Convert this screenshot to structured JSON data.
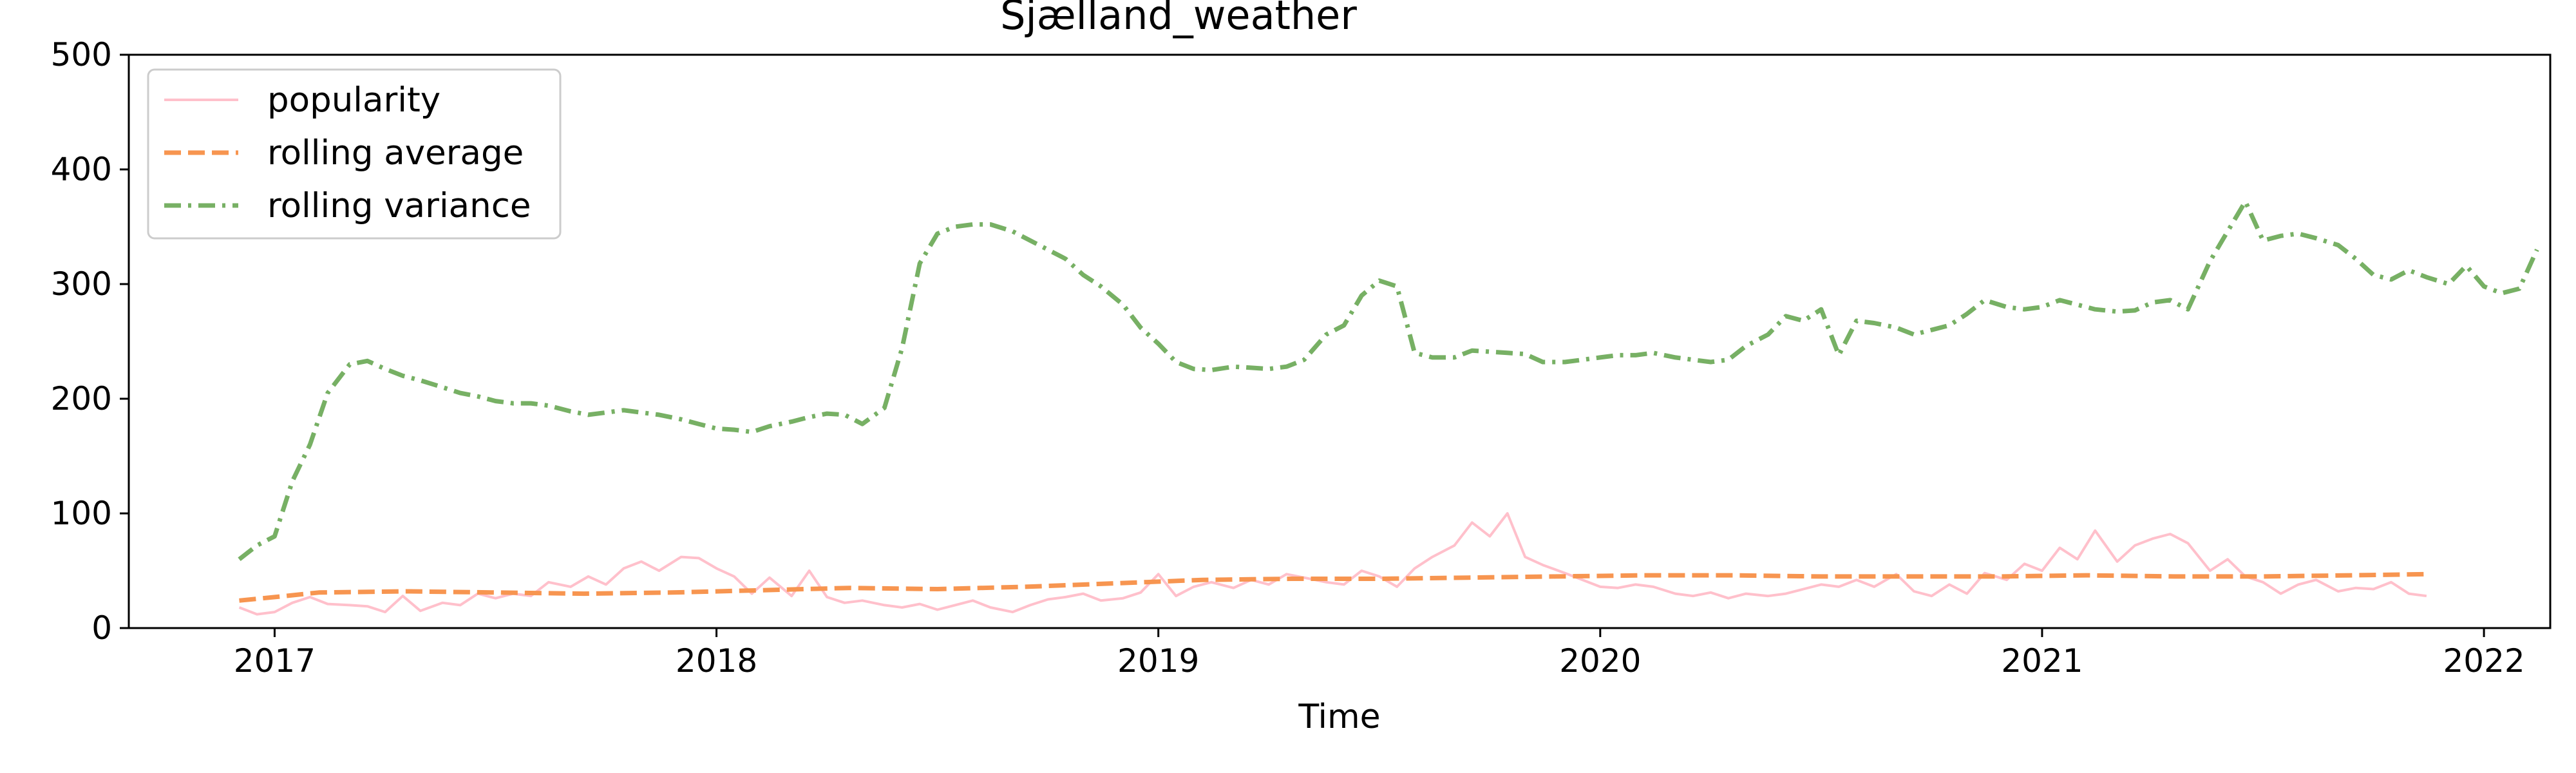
{
  "chart_data": {
    "type": "line",
    "title": "Sjælland_weather",
    "xlabel": "Time",
    "ylabel": "",
    "xlim": [
      2016.67,
      2022.15
    ],
    "ylim": [
      0,
      500
    ],
    "grid": false,
    "legend_position": "top-left",
    "x_ticks": [
      2017,
      2018,
      2019,
      2020,
      2021,
      2022
    ],
    "x_tick_labels": [
      "2017",
      "2018",
      "2019",
      "2020",
      "2021",
      "2022"
    ],
    "y_ticks": [
      0,
      100,
      200,
      300,
      400,
      500
    ],
    "y_tick_labels": [
      "0",
      "100",
      "200",
      "300",
      "400",
      "500"
    ],
    "series": [
      {
        "name": "popularity",
        "color": "#ffc0cb",
        "dash": "solid",
        "points": [
          [
            2016.92,
            18
          ],
          [
            2016.96,
            12
          ],
          [
            2017.0,
            14
          ],
          [
            2017.04,
            22
          ],
          [
            2017.08,
            27
          ],
          [
            2017.12,
            21
          ],
          [
            2017.17,
            20
          ],
          [
            2017.21,
            19
          ],
          [
            2017.25,
            14
          ],
          [
            2017.29,
            28
          ],
          [
            2017.33,
            15
          ],
          [
            2017.38,
            22
          ],
          [
            2017.42,
            20
          ],
          [
            2017.46,
            30
          ],
          [
            2017.5,
            26
          ],
          [
            2017.54,
            30
          ],
          [
            2017.58,
            28
          ],
          [
            2017.62,
            40
          ],
          [
            2017.67,
            36
          ],
          [
            2017.71,
            45
          ],
          [
            2017.75,
            38
          ],
          [
            2017.79,
            52
          ],
          [
            2017.83,
            58
          ],
          [
            2017.87,
            50
          ],
          [
            2017.92,
            62
          ],
          [
            2017.96,
            61
          ],
          [
            2018.0,
            52
          ],
          [
            2018.04,
            45
          ],
          [
            2018.08,
            30
          ],
          [
            2018.12,
            44
          ],
          [
            2018.17,
            28
          ],
          [
            2018.21,
            50
          ],
          [
            2018.25,
            27
          ],
          [
            2018.29,
            22
          ],
          [
            2018.33,
            24
          ],
          [
            2018.38,
            20
          ],
          [
            2018.42,
            18
          ],
          [
            2018.46,
            21
          ],
          [
            2018.5,
            16
          ],
          [
            2018.54,
            20
          ],
          [
            2018.58,
            24
          ],
          [
            2018.62,
            18
          ],
          [
            2018.67,
            14
          ],
          [
            2018.71,
            20
          ],
          [
            2018.75,
            25
          ],
          [
            2018.79,
            27
          ],
          [
            2018.83,
            30
          ],
          [
            2018.87,
            24
          ],
          [
            2018.92,
            26
          ],
          [
            2018.96,
            31
          ],
          [
            2019.0,
            47
          ],
          [
            2019.04,
            28
          ],
          [
            2019.08,
            36
          ],
          [
            2019.12,
            40
          ],
          [
            2019.17,
            35
          ],
          [
            2019.21,
            42
          ],
          [
            2019.25,
            38
          ],
          [
            2019.29,
            47
          ],
          [
            2019.33,
            44
          ],
          [
            2019.38,
            40
          ],
          [
            2019.42,
            38
          ],
          [
            2019.46,
            50
          ],
          [
            2019.5,
            45
          ],
          [
            2019.54,
            36
          ],
          [
            2019.58,
            52
          ],
          [
            2019.62,
            62
          ],
          [
            2019.67,
            72
          ],
          [
            2019.71,
            92
          ],
          [
            2019.75,
            80
          ],
          [
            2019.79,
            100
          ],
          [
            2019.83,
            62
          ],
          [
            2019.87,
            55
          ],
          [
            2019.92,
            48
          ],
          [
            2019.96,
            42
          ],
          [
            2020.0,
            36
          ],
          [
            2020.04,
            35
          ],
          [
            2020.08,
            38
          ],
          [
            2020.12,
            36
          ],
          [
            2020.17,
            30
          ],
          [
            2020.21,
            28
          ],
          [
            2020.25,
            31
          ],
          [
            2020.29,
            26
          ],
          [
            2020.33,
            30
          ],
          [
            2020.38,
            28
          ],
          [
            2020.42,
            30
          ],
          [
            2020.46,
            34
          ],
          [
            2020.5,
            38
          ],
          [
            2020.54,
            36
          ],
          [
            2020.58,
            42
          ],
          [
            2020.62,
            36
          ],
          [
            2020.67,
            47
          ],
          [
            2020.71,
            32
          ],
          [
            2020.75,
            28
          ],
          [
            2020.79,
            38
          ],
          [
            2020.83,
            30
          ],
          [
            2020.87,
            48
          ],
          [
            2020.92,
            42
          ],
          [
            2020.96,
            56
          ],
          [
            2021.0,
            50
          ],
          [
            2021.04,
            70
          ],
          [
            2021.08,
            60
          ],
          [
            2021.12,
            85
          ],
          [
            2021.17,
            58
          ],
          [
            2021.21,
            72
          ],
          [
            2021.25,
            78
          ],
          [
            2021.29,
            82
          ],
          [
            2021.33,
            74
          ],
          [
            2021.38,
            50
          ],
          [
            2021.42,
            60
          ],
          [
            2021.46,
            45
          ],
          [
            2021.5,
            40
          ],
          [
            2021.54,
            30
          ],
          [
            2021.58,
            38
          ],
          [
            2021.62,
            42
          ],
          [
            2021.67,
            32
          ],
          [
            2021.71,
            35
          ],
          [
            2021.75,
            34
          ],
          [
            2021.79,
            40
          ],
          [
            2021.83,
            30
          ],
          [
            2021.87,
            28
          ]
        ]
      },
      {
        "name": "rolling average",
        "color": "#f79550",
        "dash": "dashed",
        "points": [
          [
            2016.92,
            24
          ],
          [
            2017.0,
            27
          ],
          [
            2017.1,
            31
          ],
          [
            2017.3,
            32
          ],
          [
            2017.5,
            31
          ],
          [
            2017.7,
            30
          ],
          [
            2017.9,
            31
          ],
          [
            2018.1,
            33
          ],
          [
            2018.3,
            35
          ],
          [
            2018.5,
            34
          ],
          [
            2018.7,
            36
          ],
          [
            2018.9,
            39
          ],
          [
            2019.1,
            42
          ],
          [
            2019.3,
            43
          ],
          [
            2019.5,
            43
          ],
          [
            2019.7,
            44
          ],
          [
            2019.9,
            45
          ],
          [
            2020.1,
            46
          ],
          [
            2020.3,
            46
          ],
          [
            2020.5,
            45
          ],
          [
            2020.7,
            45
          ],
          [
            2020.9,
            45
          ],
          [
            2021.1,
            46
          ],
          [
            2021.3,
            45
          ],
          [
            2021.5,
            45
          ],
          [
            2021.7,
            46
          ],
          [
            2021.87,
            47
          ]
        ]
      },
      {
        "name": "rolling variance",
        "color": "#77b064",
        "dash": "dashdot",
        "points": [
          [
            2016.92,
            60
          ],
          [
            2016.96,
            72
          ],
          [
            2017.0,
            80
          ],
          [
            2017.04,
            128
          ],
          [
            2017.08,
            160
          ],
          [
            2017.12,
            205
          ],
          [
            2017.17,
            230
          ],
          [
            2017.21,
            233
          ],
          [
            2017.25,
            226
          ],
          [
            2017.29,
            220
          ],
          [
            2017.33,
            216
          ],
          [
            2017.38,
            210
          ],
          [
            2017.42,
            205
          ],
          [
            2017.46,
            202
          ],
          [
            2017.5,
            198
          ],
          [
            2017.54,
            196
          ],
          [
            2017.58,
            196
          ],
          [
            2017.62,
            194
          ],
          [
            2017.67,
            189
          ],
          [
            2017.71,
            186
          ],
          [
            2017.75,
            188
          ],
          [
            2017.79,
            190
          ],
          [
            2017.83,
            188
          ],
          [
            2017.87,
            186
          ],
          [
            2017.92,
            182
          ],
          [
            2017.96,
            178
          ],
          [
            2018.0,
            174
          ],
          [
            2018.04,
            173
          ],
          [
            2018.08,
            171
          ],
          [
            2018.12,
            176
          ],
          [
            2018.17,
            180
          ],
          [
            2018.21,
            184
          ],
          [
            2018.25,
            187
          ],
          [
            2018.29,
            186
          ],
          [
            2018.33,
            178
          ],
          [
            2018.38,
            192
          ],
          [
            2018.42,
            244
          ],
          [
            2018.46,
            318
          ],
          [
            2018.5,
            344
          ],
          [
            2018.54,
            350
          ],
          [
            2018.58,
            352
          ],
          [
            2018.62,
            352
          ],
          [
            2018.67,
            346
          ],
          [
            2018.71,
            338
          ],
          [
            2018.75,
            330
          ],
          [
            2018.79,
            322
          ],
          [
            2018.83,
            308
          ],
          [
            2018.87,
            298
          ],
          [
            2018.92,
            282
          ],
          [
            2018.96,
            262
          ],
          [
            2019.0,
            248
          ],
          [
            2019.04,
            232
          ],
          [
            2019.08,
            226
          ],
          [
            2019.12,
            225
          ],
          [
            2019.17,
            228
          ],
          [
            2019.21,
            227
          ],
          [
            2019.25,
            226
          ],
          [
            2019.29,
            228
          ],
          [
            2019.33,
            234
          ],
          [
            2019.38,
            256
          ],
          [
            2019.42,
            264
          ],
          [
            2019.46,
            290
          ],
          [
            2019.5,
            303
          ],
          [
            2019.54,
            298
          ],
          [
            2019.58,
            240
          ],
          [
            2019.62,
            236
          ],
          [
            2019.67,
            236
          ],
          [
            2019.71,
            242
          ],
          [
            2019.75,
            241
          ],
          [
            2019.79,
            240
          ],
          [
            2019.83,
            239
          ],
          [
            2019.87,
            232
          ],
          [
            2019.92,
            232
          ],
          [
            2019.96,
            234
          ],
          [
            2020.0,
            236
          ],
          [
            2020.04,
            238
          ],
          [
            2020.08,
            238
          ],
          [
            2020.12,
            240
          ],
          [
            2020.17,
            236
          ],
          [
            2020.21,
            234
          ],
          [
            2020.25,
            232
          ],
          [
            2020.29,
            234
          ],
          [
            2020.33,
            246
          ],
          [
            2020.38,
            256
          ],
          [
            2020.42,
            272
          ],
          [
            2020.46,
            268
          ],
          [
            2020.5,
            278
          ],
          [
            2020.54,
            238
          ],
          [
            2020.58,
            268
          ],
          [
            2020.62,
            266
          ],
          [
            2020.67,
            262
          ],
          [
            2020.71,
            256
          ],
          [
            2020.75,
            260
          ],
          [
            2020.79,
            264
          ],
          [
            2020.83,
            274
          ],
          [
            2020.87,
            286
          ],
          [
            2020.92,
            280
          ],
          [
            2020.96,
            278
          ],
          [
            2021.0,
            280
          ],
          [
            2021.04,
            286
          ],
          [
            2021.08,
            282
          ],
          [
            2021.12,
            278
          ],
          [
            2021.17,
            276
          ],
          [
            2021.21,
            277
          ],
          [
            2021.25,
            284
          ],
          [
            2021.29,
            286
          ],
          [
            2021.33,
            278
          ],
          [
            2021.38,
            320
          ],
          [
            2021.42,
            346
          ],
          [
            2021.46,
            372
          ],
          [
            2021.5,
            338
          ],
          [
            2021.54,
            342
          ],
          [
            2021.58,
            344
          ],
          [
            2021.62,
            340
          ],
          [
            2021.67,
            334
          ],
          [
            2021.71,
            322
          ],
          [
            2021.75,
            308
          ],
          [
            2021.79,
            304
          ],
          [
            2021.83,
            312
          ],
          [
            2021.87,
            306
          ],
          [
            2021.92,
            300
          ],
          [
            2021.96,
            316
          ],
          [
            2022.0,
            298
          ],
          [
            2022.04,
            292
          ],
          [
            2022.08,
            296
          ],
          [
            2022.12,
            330
          ]
        ]
      }
    ]
  }
}
